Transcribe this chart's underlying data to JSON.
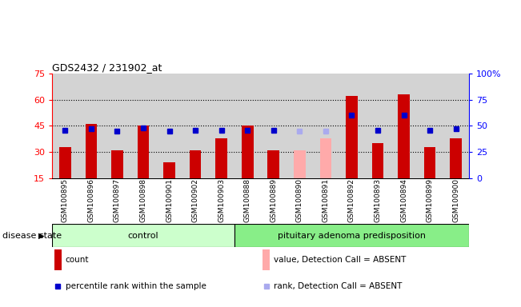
{
  "title": "GDS2432 / 231902_at",
  "samples": [
    "GSM100895",
    "GSM100896",
    "GSM100897",
    "GSM100898",
    "GSM100901",
    "GSM100902",
    "GSM100903",
    "GSM100888",
    "GSM100889",
    "GSM100890",
    "GSM100891",
    "GSM100892",
    "GSM100893",
    "GSM100894",
    "GSM100899",
    "GSM100900"
  ],
  "bar_values": [
    33,
    46,
    31,
    45,
    24,
    31,
    38,
    45,
    31,
    null,
    null,
    62,
    35,
    63,
    33,
    38
  ],
  "absent_bar_values": [
    null,
    null,
    null,
    null,
    null,
    null,
    null,
    null,
    null,
    31,
    38,
    null,
    null,
    null,
    null,
    null
  ],
  "rank_values": [
    46,
    47,
    45,
    48,
    45,
    46,
    46,
    46,
    46,
    null,
    null,
    60,
    46,
    60,
    46,
    47
  ],
  "absent_rank_values": [
    null,
    null,
    null,
    null,
    null,
    null,
    null,
    null,
    null,
    45,
    45,
    null,
    null,
    null,
    null,
    null
  ],
  "control_count": 7,
  "ylim_left": [
    15,
    75
  ],
  "ylim_right": [
    0,
    100
  ],
  "yticks_left": [
    15,
    30,
    45,
    60,
    75
  ],
  "yticks_right": [
    0,
    25,
    50,
    75,
    100
  ],
  "ytick_labels_left": [
    "15",
    "30",
    "45",
    "60",
    "75"
  ],
  "ytick_labels_right": [
    "0",
    "25",
    "50",
    "75",
    "100%"
  ],
  "bar_color": "#cc0000",
  "absent_bar_color": "#ffaaaa",
  "rank_color": "#0000cc",
  "absent_rank_color": "#aaaaee",
  "sample_bg": "#d3d3d3",
  "dotted_lines": [
    30,
    45,
    60
  ],
  "control_label": "control",
  "disease_label": "pituitary adenoma predisposition",
  "disease_state_label": "disease state",
  "control_bg": "#ccffcc",
  "disease_bg": "#88ee88",
  "legend_items": [
    {
      "label": "count",
      "color": "#cc0000",
      "type": "bar"
    },
    {
      "label": "percentile rank within the sample",
      "color": "#0000cc",
      "type": "square"
    },
    {
      "label": "value, Detection Call = ABSENT",
      "color": "#ffaaaa",
      "type": "bar"
    },
    {
      "label": "rank, Detection Call = ABSENT",
      "color": "#aaaaee",
      "type": "square"
    }
  ]
}
